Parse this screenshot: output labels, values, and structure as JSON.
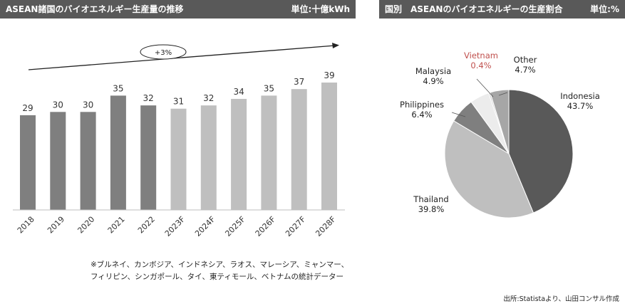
{
  "left_panel": {
    "title": "ASEAN諸国のバイオエネルギー生産量の推移",
    "unit": "単位:十億kWh",
    "growth_label": "+3%"
  },
  "right_panel": {
    "title": "国別　ASEANのバイオエネルギーの生産割合",
    "unit": "単位:%"
  },
  "note_line1": "※ブルネイ、カンボジア、インドネシア、ラオス、マレーシア、ミャンマー、",
  "note_line2": "フィリピン、シンガポール、タイ、東ティモール、ベトナムの統計データー",
  "source": "出所:Statistaより、山田コンサル作成",
  "colors": {
    "actual_bar": "#7f7f7f",
    "forecast_bar": "#bfbfbf",
    "header_bg": "#595959",
    "vietnam_label": "#c0504d"
  },
  "chart_data": [
    {
      "type": "bar",
      "categories": [
        "2018",
        "2019",
        "2020",
        "2021",
        "2022",
        "2023F",
        "2024F",
        "2025F",
        "2026F",
        "2027F",
        "2028F"
      ],
      "values": [
        29,
        30,
        30,
        35,
        32,
        31,
        32,
        34,
        35,
        37,
        39
      ],
      "actual_count": 5,
      "ylim": [
        0,
        45
      ],
      "grid": false
    },
    {
      "type": "pie",
      "slices": [
        {
          "label": "Indonesia",
          "value": 43.7,
          "value_text": "43.7%",
          "color": "#595959"
        },
        {
          "label": "Thailand",
          "value": 39.8,
          "value_text": "39.8%",
          "color": "#bfbfbf"
        },
        {
          "label": "Philippines",
          "value": 6.4,
          "value_text": "6.4%",
          "color": "#7f7f7f"
        },
        {
          "label": "Malaysia",
          "value": 4.9,
          "value_text": "4.9%",
          "color": "#ececec"
        },
        {
          "label": "Vietnam",
          "value": 0.4,
          "value_text": "0.4%",
          "color": "#d0d0d0"
        },
        {
          "label": "Other",
          "value": 4.7,
          "value_text": "4.7%",
          "color": "#a6a6a6"
        }
      ]
    }
  ]
}
